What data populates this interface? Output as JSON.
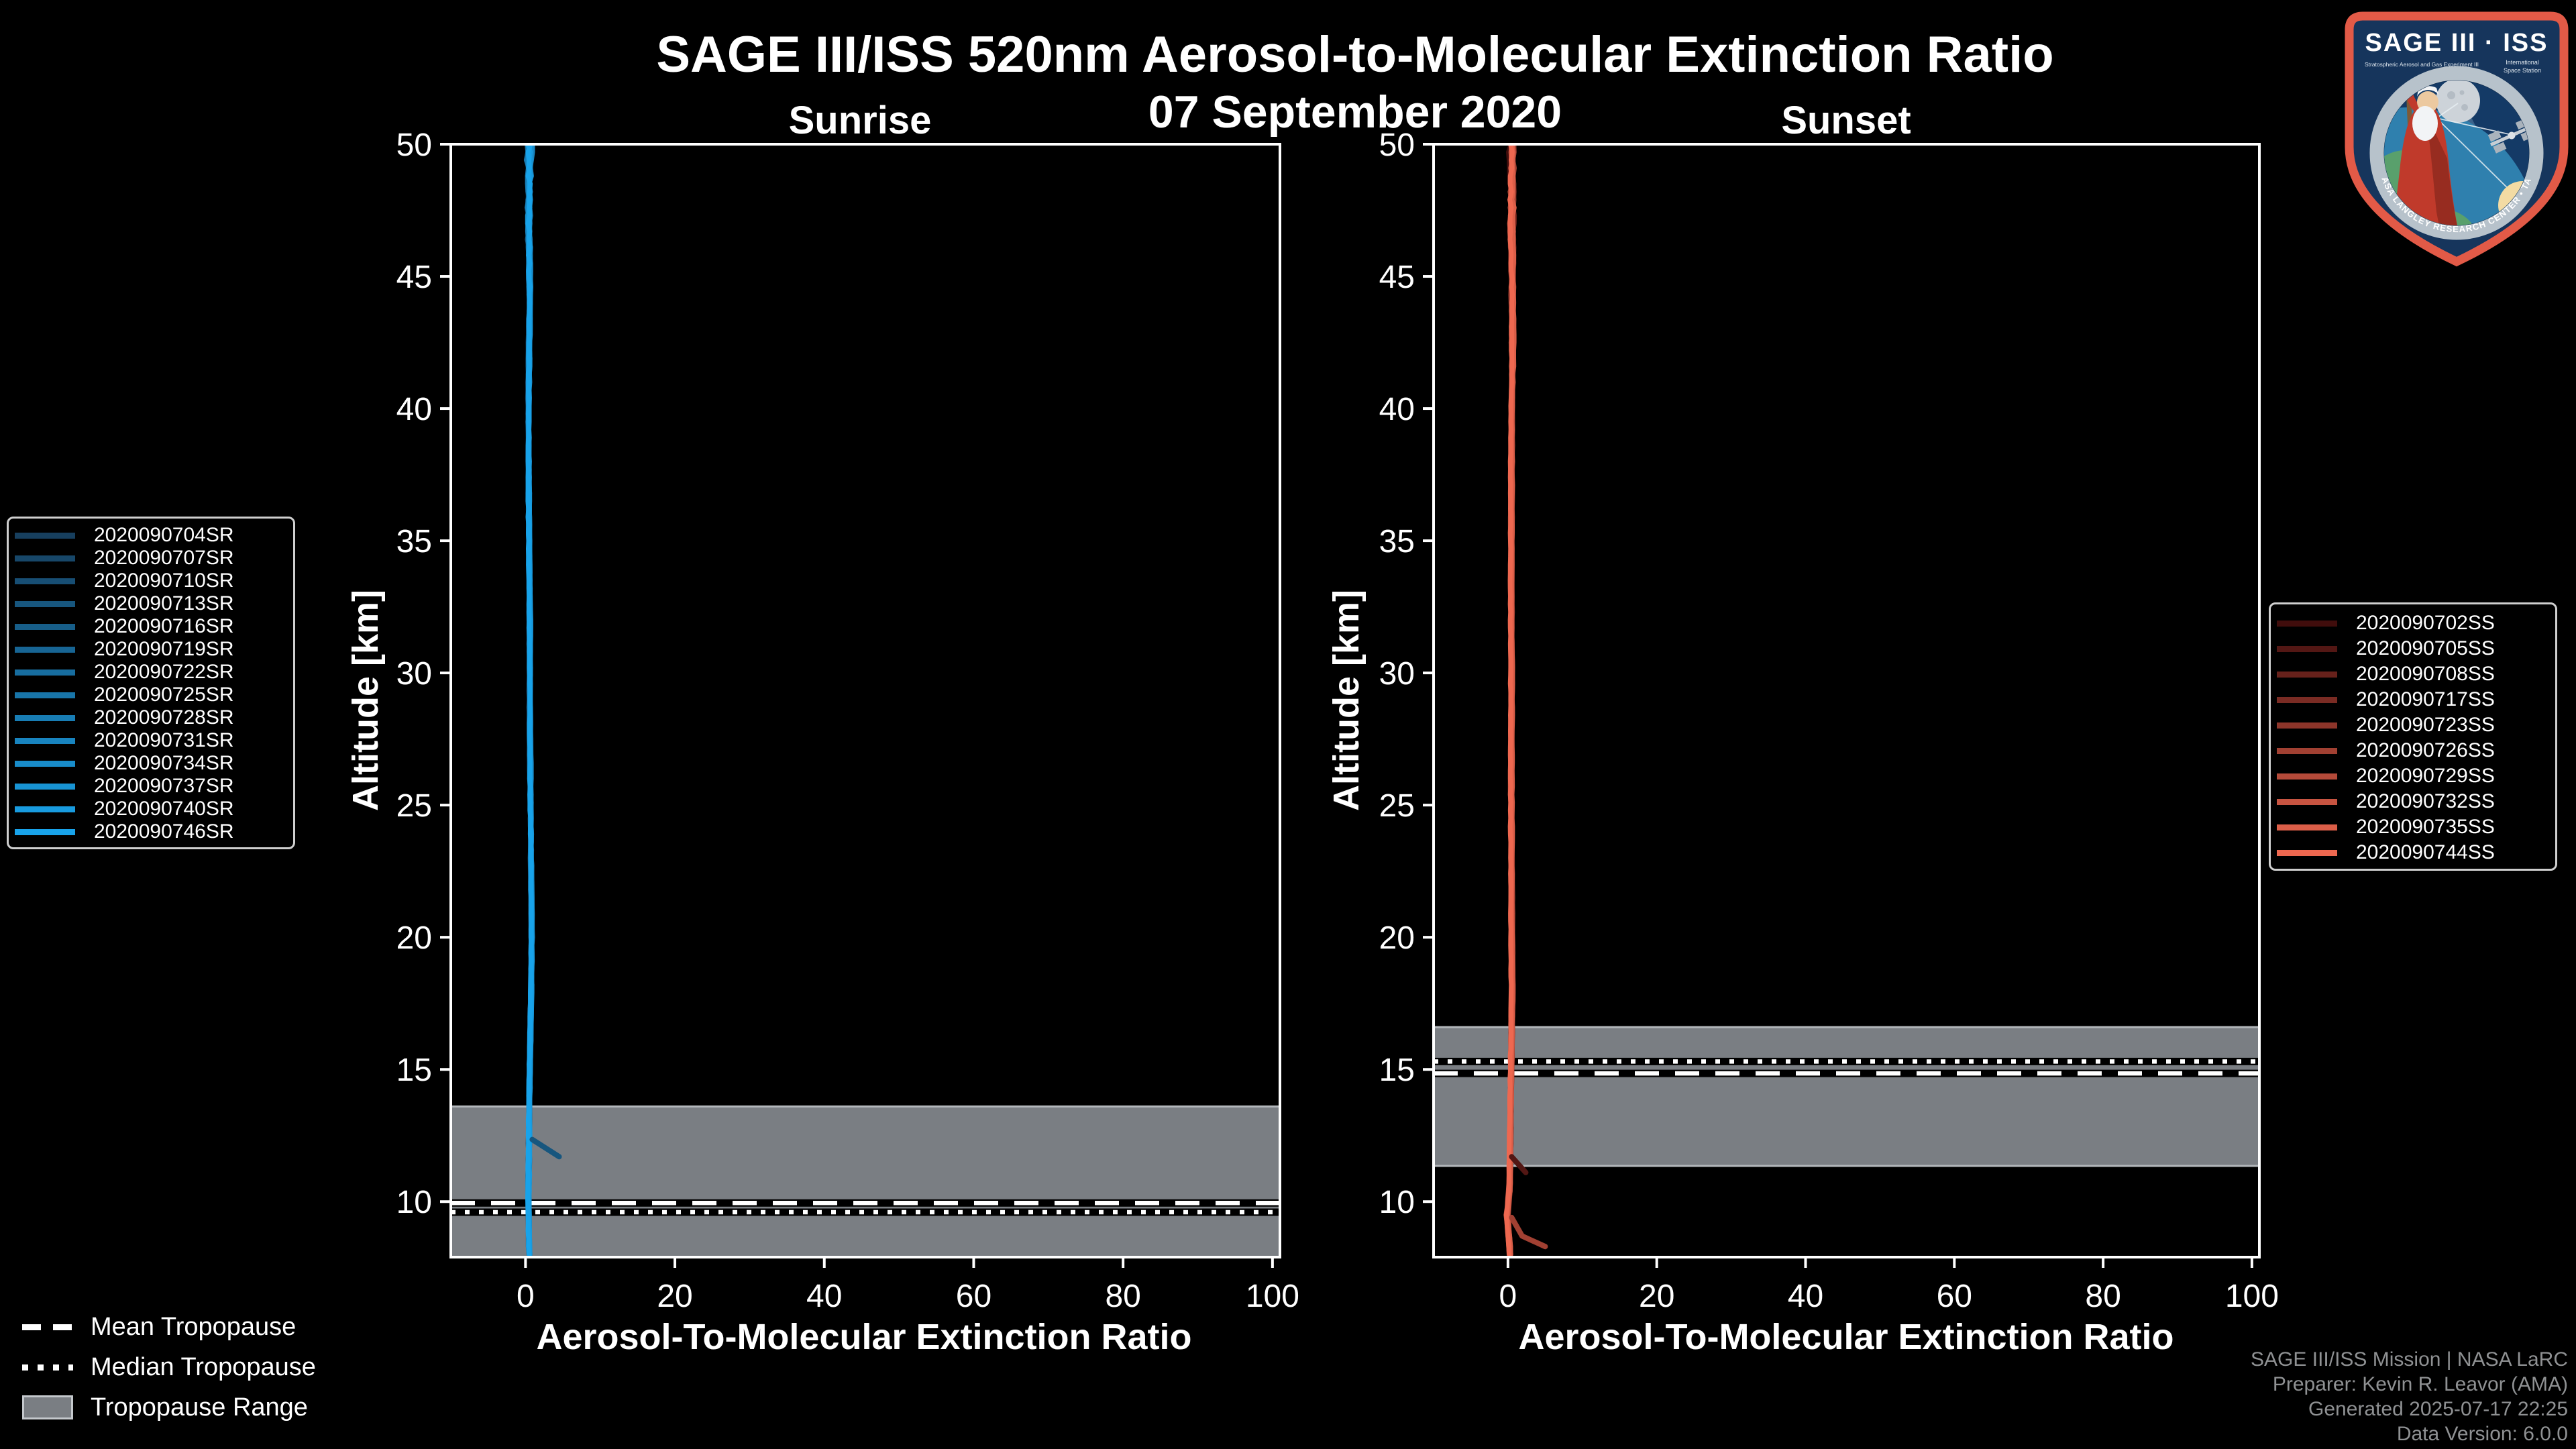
{
  "header": {
    "title": "SAGE III/ISS 520nm Aerosol-to-Molecular Extinction Ratio",
    "date": "07 September 2020"
  },
  "logo": {
    "title": "SAGE III · ISS",
    "subtitle_left": "Stratospheric Aerosol and Gas Experiment III",
    "subtitle_right_1": "International",
    "subtitle_right_2": "Space Station",
    "ring_text": "BALL • NASA LANGLEY RESEARCH CENTER • TAS-I • ESA"
  },
  "footer": {
    "lines": [
      "SAGE III/ISS Mission | NASA LaRC",
      "Preparer: Kevin R. Leavor (AMA)",
      "Generated 2025-07-17 22:25",
      "Data Version: 6.0.0"
    ]
  },
  "tropopause_legend": [
    {
      "label": "Mean Tropopause",
      "style": "dashed"
    },
    {
      "label": "Median Tropopause",
      "style": "dotted"
    },
    {
      "label": "Tropopause Range",
      "style": "band"
    }
  ],
  "chart_data": {
    "type": "line",
    "title": "SAGE III/ISS 520nm Aerosol-to-Molecular Extinction Ratio",
    "subtitle": "07 September 2020",
    "x_axis": {
      "label": "Aerosol-To-Molecular Extinction Ratio",
      "range": [
        -10,
        101
      ],
      "ticks": [
        0,
        20,
        40,
        60,
        80,
        100
      ]
    },
    "y_axis": {
      "label": "Altitude [km]",
      "range": [
        7.9,
        50
      ],
      "ticks": [
        10,
        15,
        20,
        25,
        30,
        35,
        40,
        45,
        50
      ]
    },
    "band_color": "#7a7e83",
    "band_edge_color": "#b3b7bb",
    "panels": [
      {
        "title": "Sunrise",
        "legend_side": "left",
        "color_ramp": [
          "#173f5e",
          "#18a3ea"
        ],
        "series": [
          "2020090704SR",
          "2020090707SR",
          "2020090710SR",
          "2020090713SR",
          "2020090716SR",
          "2020090719SR",
          "2020090722SR",
          "2020090725SR",
          "2020090728SR",
          "2020090731SR",
          "2020090734SR",
          "2020090737SR",
          "2020090740SR",
          "2020090746SR"
        ],
        "base_profile": [
          [
            50,
            0.55
          ],
          [
            48,
            0.5
          ],
          [
            46,
            0.55
          ],
          [
            44,
            0.6
          ],
          [
            40,
            0.45
          ],
          [
            36,
            0.5
          ],
          [
            32,
            0.6
          ],
          [
            28,
            0.65
          ],
          [
            24,
            0.75
          ],
          [
            20,
            0.85
          ],
          [
            18,
            0.8
          ],
          [
            16,
            0.65
          ],
          [
            14,
            0.55
          ],
          [
            12,
            0.5
          ],
          [
            10,
            0.45
          ],
          [
            9,
            0.5
          ],
          [
            8.1,
            0.55
          ]
        ],
        "noise": {
          "base_amp": 0.16,
          "top_start": 43,
          "top_amp": 0.85,
          "seed": 11
        },
        "outlier_segments": [
          {
            "series_index": 3,
            "points": [
              [
                0.9,
                12.35
              ],
              [
                4.5,
                11.7
              ]
            ]
          }
        ],
        "tropopause": {
          "mean_km": 9.95,
          "median_km": 9.6,
          "range_km": [
            7.9,
            13.6
          ]
        }
      },
      {
        "title": "Sunset",
        "legend_side": "right",
        "color_ramp": [
          "#400d0c",
          "#ee6850"
        ],
        "series": [
          "2020090702SS",
          "2020090705SS",
          "2020090708SS",
          "2020090717SS",
          "2020090723SS",
          "2020090726SS",
          "2020090729SS",
          "2020090732SS",
          "2020090735SS",
          "2020090744SS"
        ],
        "base_profile": [
          [
            50,
            0.45
          ],
          [
            46,
            0.5
          ],
          [
            42,
            0.55
          ],
          [
            38,
            0.45
          ],
          [
            34,
            0.4
          ],
          [
            30,
            0.45
          ],
          [
            26,
            0.4
          ],
          [
            22,
            0.45
          ],
          [
            20,
            0.5
          ],
          [
            18,
            0.55
          ],
          [
            16,
            0.45
          ],
          [
            14,
            0.35
          ],
          [
            12,
            0.3
          ],
          [
            10.5,
            0.2
          ],
          [
            9.5,
            -0.15
          ],
          [
            8.8,
            0.05
          ],
          [
            8.1,
            0.25
          ]
        ],
        "noise": {
          "base_amp": 0.14,
          "top_start": 40,
          "top_amp": 0.7,
          "seed": 77
        },
        "outlier_segments": [
          {
            "series_index": 1,
            "points": [
              [
                0.5,
                11.7
              ],
              [
                2.4,
                11.1
              ]
            ]
          },
          {
            "series_index": 5,
            "points": [
              [
                0.5,
                9.4
              ],
              [
                1.9,
                8.7
              ],
              [
                5.0,
                8.3
              ]
            ]
          }
        ],
        "tropopause": {
          "mean_km": 14.85,
          "median_km": 15.3,
          "range_km": [
            11.35,
            16.6
          ]
        }
      }
    ]
  }
}
